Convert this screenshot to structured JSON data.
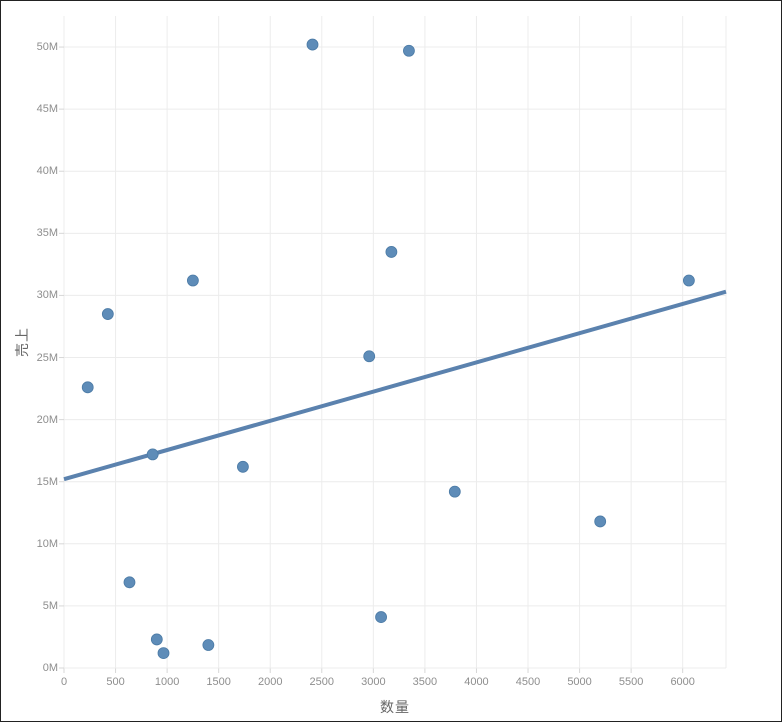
{
  "chart_data": {
    "type": "scatter",
    "title": "",
    "xlabel": "数量",
    "ylabel": "売上",
    "legend": "none",
    "grid": true,
    "xlim": [
      0,
      6420
    ],
    "ylim": [
      0,
      52.5
    ],
    "y_unit": "millions (M)",
    "x_ticks": [
      {
        "value": 0,
        "label": "0"
      },
      {
        "value": 500,
        "label": "500"
      },
      {
        "value": 1000,
        "label": "1000"
      },
      {
        "value": 1500,
        "label": "1500"
      },
      {
        "value": 2000,
        "label": "2000"
      },
      {
        "value": 2500,
        "label": "2500"
      },
      {
        "value": 3000,
        "label": "3000"
      },
      {
        "value": 3500,
        "label": "3500"
      },
      {
        "value": 4000,
        "label": "4000"
      },
      {
        "value": 4500,
        "label": "4500"
      },
      {
        "value": 5000,
        "label": "5000"
      },
      {
        "value": 5500,
        "label": "5500"
      },
      {
        "value": 6000,
        "label": "6000"
      }
    ],
    "y_ticks": [
      {
        "value": 0,
        "label": "0M"
      },
      {
        "value": 5,
        "label": "5M"
      },
      {
        "value": 10,
        "label": "10M"
      },
      {
        "value": 15,
        "label": "15M"
      },
      {
        "value": 20,
        "label": "20M"
      },
      {
        "value": 25,
        "label": "25M"
      },
      {
        "value": 30,
        "label": "30M"
      },
      {
        "value": 35,
        "label": "35M"
      },
      {
        "value": 40,
        "label": "40M"
      },
      {
        "value": 45,
        "label": "45M"
      },
      {
        "value": 50,
        "label": "50M"
      }
    ],
    "points": [
      {
        "x": 2410,
        "y": 50.2
      },
      {
        "x": 3345,
        "y": 49.7
      },
      {
        "x": 3175,
        "y": 33.5
      },
      {
        "x": 1250,
        "y": 31.2
      },
      {
        "x": 6060,
        "y": 31.2
      },
      {
        "x": 425,
        "y": 28.5
      },
      {
        "x": 2960,
        "y": 25.1
      },
      {
        "x": 230,
        "y": 22.6
      },
      {
        "x": 860,
        "y": 17.2
      },
      {
        "x": 1735,
        "y": 16.2
      },
      {
        "x": 3790,
        "y": 14.2
      },
      {
        "x": 5200,
        "y": 11.8
      },
      {
        "x": 635,
        "y": 6.9
      },
      {
        "x": 3075,
        "y": 4.1
      },
      {
        "x": 900,
        "y": 2.3
      },
      {
        "x": 1400,
        "y": 1.85
      },
      {
        "x": 965,
        "y": 1.2
      }
    ],
    "trend_line": {
      "x1": 0,
      "y1": 15.2,
      "x2": 6420,
      "y2": 30.3
    },
    "colors": {
      "marker": "#5E8CB8",
      "marker_stroke": "#4C7BA6",
      "trend": "#5B82AE",
      "grid": "#ececec",
      "tick": "#d7d7d7",
      "tick_label": "#8e8e8e",
      "axis_title": "#666666",
      "background": "#ffffff"
    }
  }
}
